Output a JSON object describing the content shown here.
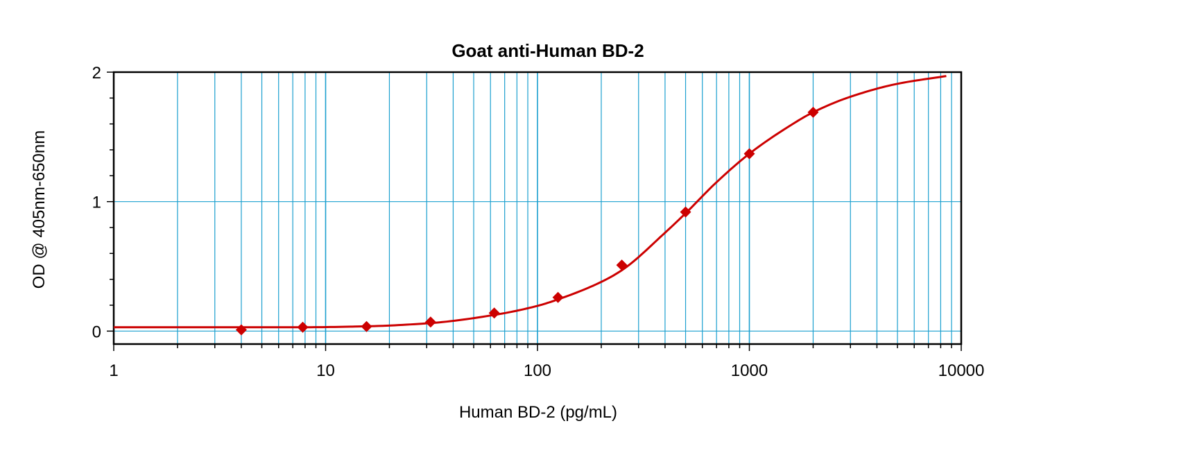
{
  "chart_data": {
    "type": "scatter",
    "title": "Goat anti-Human BD-2",
    "xlabel": "Human BD-2 (pg/mL)",
    "ylabel": "OD @ 405nm-650nm",
    "xscale": "log",
    "xlim": [
      1,
      10000
    ],
    "ylim": [
      -0.1,
      2
    ],
    "x_ticks": [
      1,
      10,
      100,
      1000,
      10000
    ],
    "x_tick_labels": [
      "1",
      "10",
      "100",
      "1000",
      "10000"
    ],
    "y_ticks": [
      0,
      1,
      2
    ],
    "y_tick_labels": [
      "0",
      "1",
      "2"
    ],
    "grid": true,
    "grid_color": "#1a9fcf",
    "series": [
      {
        "marker": "diamond",
        "color": "#cc0000",
        "x": [
          4,
          7.8,
          15.6,
          31.3,
          62.5,
          125,
          250,
          500,
          1000,
          2000
        ],
        "y": [
          0.01,
          0.03,
          0.035,
          0.07,
          0.14,
          0.26,
          0.51,
          0.92,
          1.37,
          1.69
        ]
      }
    ],
    "fit_curve": {
      "color": "#cc0000",
      "x": [
        1,
        2,
        4,
        7.8,
        15.6,
        31.3,
        62.5,
        100,
        125,
        200,
        250,
        400,
        500,
        700,
        1000,
        1500,
        2000,
        3000,
        5000,
        8500
      ],
      "y": [
        0.03,
        0.03,
        0.03,
        0.03,
        0.037,
        0.062,
        0.125,
        0.195,
        0.245,
        0.38,
        0.47,
        0.76,
        0.91,
        1.15,
        1.37,
        1.57,
        1.69,
        1.81,
        1.91,
        1.97
      ]
    }
  }
}
